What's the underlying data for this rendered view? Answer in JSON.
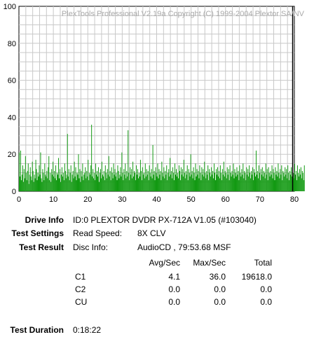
{
  "chart_data": {
    "type": "bar",
    "title": "PlexTools Professional V2.19a Copyright (C) 1999-2004 Plextor SA/NV",
    "xlabel": "",
    "ylabel": "",
    "xlim": [
      0,
      80
    ],
    "ylim": [
      0,
      100
    ],
    "x_ticks": [
      "0",
      "10",
      "20",
      "30",
      "40",
      "50",
      "60",
      "70",
      "80"
    ],
    "y_ticks": [
      "0",
      "20",
      "40",
      "60",
      "80",
      "100"
    ],
    "grid": true,
    "bar_color": "#119911",
    "marker_x": 79.5,
    "series": [
      {
        "x_start": 0.0,
        "x_step": 0.2,
        "values": [
          21,
          8,
          22,
          6,
          9,
          14,
          5,
          12,
          7,
          19,
          10,
          6,
          11,
          15,
          4,
          9,
          13,
          8,
          6,
          16,
          11,
          5,
          9,
          7,
          17,
          12,
          6,
          10,
          8,
          14,
          9,
          21,
          7,
          5,
          12,
          10,
          6,
          15,
          9,
          8,
          11,
          7,
          13,
          19,
          6,
          10,
          5,
          12,
          9,
          16,
          8,
          11,
          7,
          14,
          6,
          10,
          9,
          18,
          7,
          12,
          5,
          9,
          13,
          8,
          10,
          6,
          15,
          11,
          7,
          9,
          31,
          8,
          12,
          6,
          10,
          14,
          5,
          9,
          11,
          7,
          16,
          8,
          13,
          6,
          10,
          9,
          20,
          7,
          12,
          5,
          11,
          8,
          15,
          6,
          9,
          10,
          13,
          7,
          11,
          8,
          17,
          6,
          10,
          9,
          14,
          36,
          8,
          12,
          7,
          10,
          6,
          15,
          9,
          11,
          8,
          13,
          5,
          10,
          12,
          7,
          16,
          9,
          8,
          11,
          6,
          14,
          10,
          7,
          12,
          9,
          19,
          8,
          11,
          6,
          13,
          10,
          7,
          15,
          9,
          12,
          8,
          10,
          6,
          14,
          11,
          7,
          9,
          13,
          8,
          21,
          10,
          6,
          12,
          9,
          15,
          7,
          11,
          8,
          33,
          10,
          6,
          13,
          9,
          12,
          7,
          16,
          8,
          11,
          10,
          6,
          14,
          9,
          12,
          7,
          10,
          8,
          17,
          11,
          6,
          13,
          9,
          10,
          7,
          15,
          8,
          12,
          9,
          11,
          6,
          14,
          10,
          8,
          12,
          7,
          25,
          9,
          11,
          6,
          13,
          10,
          8,
          15,
          7,
          12,
          9,
          11,
          6,
          16,
          10,
          8,
          13,
          7,
          11,
          9,
          14,
          6,
          10,
          12,
          8,
          18,
          9,
          11,
          7,
          13,
          10,
          6,
          15,
          9,
          12,
          8,
          10,
          7,
          14,
          11,
          6,
          13,
          9,
          12,
          8,
          17,
          10,
          7,
          11,
          9,
          14,
          6,
          12,
          10,
          8,
          20,
          9,
          11,
          7,
          13,
          10,
          6,
          15,
          8,
          12,
          9,
          11,
          7,
          14,
          10,
          6,
          13,
          9,
          12,
          8,
          16,
          10,
          7,
          11,
          9,
          14,
          6,
          12,
          10,
          8,
          13,
          9,
          11,
          7,
          15,
          10,
          6,
          12,
          9,
          13,
          8,
          11,
          7,
          14,
          10,
          6,
          12,
          9,
          16,
          8,
          11,
          10,
          7,
          13,
          9,
          12,
          6,
          14,
          10,
          8,
          11,
          9,
          15,
          7,
          12,
          10,
          8,
          13,
          9,
          11,
          6,
          14,
          10,
          8,
          12,
          9,
          15,
          7,
          11,
          10,
          6,
          13,
          9,
          12,
          8,
          14,
          10,
          7,
          11,
          9,
          13,
          6,
          12,
          10,
          8,
          22,
          9,
          11,
          7,
          14,
          10,
          6,
          12,
          9,
          13,
          8,
          11,
          10,
          7,
          15,
          9,
          12,
          6,
          13,
          10,
          8,
          11,
          9,
          14,
          7,
          12,
          10,
          6,
          13,
          9,
          11,
          8,
          15,
          10,
          7,
          12,
          9,
          14,
          6,
          11,
          10,
          8,
          13,
          9,
          12,
          7,
          14,
          10,
          6,
          11,
          9,
          13,
          8,
          12,
          10,
          7,
          15,
          9,
          11,
          6,
          14,
          10,
          8,
          12,
          9,
          13,
          7,
          11,
          10,
          6,
          14
        ]
      }
    ]
  },
  "info": {
    "drive_info_label": "Drive Info",
    "drive_info_value": "ID:0 PLEXTOR DVDR PX-712A V1.05 (#103040)",
    "test_settings_label": "Test Settings",
    "read_speed_label": "Read Speed:",
    "read_speed_value": "8X CLV",
    "test_result_label": "Test Result",
    "disc_info_label": "Disc Info:",
    "disc_info_value": "AudioCD , 79:53.68 MSF",
    "test_duration_label": "Test Duration",
    "test_duration_value": "0:18:22"
  },
  "results": {
    "headers": [
      "Avg/Sec",
      "Max/Sec",
      "Total"
    ],
    "rows": [
      {
        "name": "C1",
        "avg": "4.1",
        "max": "36.0",
        "total": "19618.0"
      },
      {
        "name": "C2",
        "avg": "0.0",
        "max": "0.0",
        "total": "0.0"
      },
      {
        "name": "CU",
        "avg": "0.0",
        "max": "0.0",
        "total": "0.0"
      }
    ]
  }
}
